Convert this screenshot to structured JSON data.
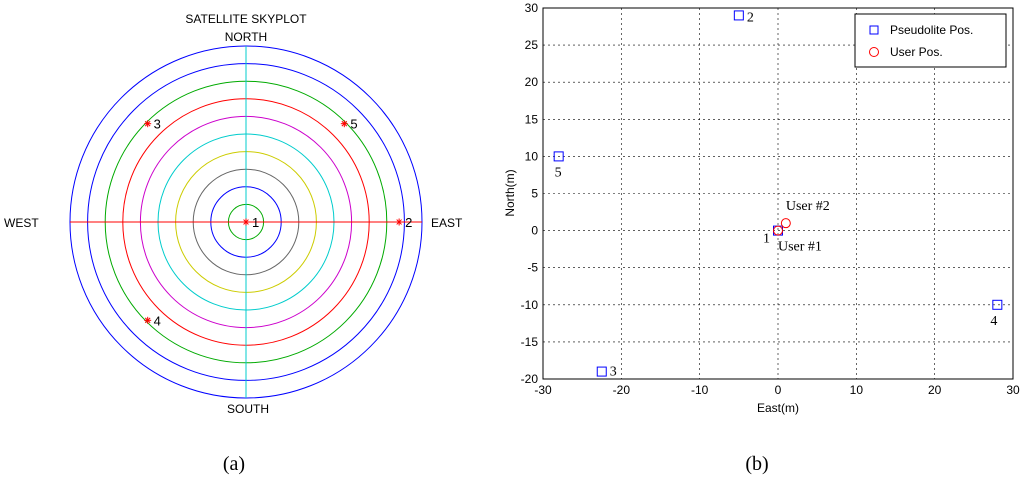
{
  "chart_data": [
    {
      "type": "scatter",
      "subtype": "polar-skyplot",
      "title": "SATELLITE SKYPLOT",
      "directions": {
        "north": "NORTH",
        "south": "SOUTH",
        "east": "EAST",
        "west": "WEST"
      },
      "rings": {
        "count": 9,
        "colors": [
          "#00aa00",
          "#0000ff",
          "#666666",
          "#cccc00",
          "#00cccc",
          "#cc00cc",
          "#ff0000",
          "#00aa00",
          "#0000ff"
        ]
      },
      "outer_ring_color": "#0000ff",
      "axis_colors": {
        "horizontal": "#ff0000",
        "vertical": "#00cccc"
      },
      "marker_color": "#ff0000",
      "points": [
        {
          "label": "1",
          "azimuth_deg": 0,
          "radius_frac": 0.0
        },
        {
          "label": "2",
          "azimuth_deg": 90,
          "radius_frac": 0.87
        },
        {
          "label": "3",
          "azimuth_deg": 315,
          "radius_frac": 0.79
        },
        {
          "label": "4",
          "azimuth_deg": 225,
          "radius_frac": 0.79
        },
        {
          "label": "5",
          "azimuth_deg": 45,
          "radius_frac": 0.79
        }
      ],
      "caption": "(a)"
    },
    {
      "type": "scatter",
      "xlabel": "East(m)",
      "ylabel": "North(m)",
      "xlim": [
        -30,
        30
      ],
      "ylim": [
        -20,
        30
      ],
      "xticks": [
        -30,
        -20,
        -10,
        0,
        10,
        20,
        30
      ],
      "yticks": [
        -20,
        -15,
        -10,
        -5,
        0,
        5,
        10,
        15,
        20,
        25,
        30
      ],
      "grid": true,
      "legend": "top-right",
      "series": [
        {
          "name": "Pseudolite Pos.",
          "marker": "square",
          "color": "#0000ff",
          "points": [
            {
              "x": 0,
              "y": 0,
              "label": "1"
            },
            {
              "x": -5,
              "y": 29,
              "label": "2"
            },
            {
              "x": -22.5,
              "y": -19,
              "label": "3"
            },
            {
              "x": 28,
              "y": -10,
              "label": "4"
            },
            {
              "x": -28,
              "y": 10,
              "label": "5"
            }
          ]
        },
        {
          "name": "User Pos.",
          "marker": "circle",
          "color": "#ff0000",
          "points": [
            {
              "x": 0,
              "y": 0,
              "label": "User #1"
            },
            {
              "x": 1,
              "y": 1,
              "label": "User #2"
            }
          ]
        }
      ],
      "caption": "(b)"
    }
  ]
}
